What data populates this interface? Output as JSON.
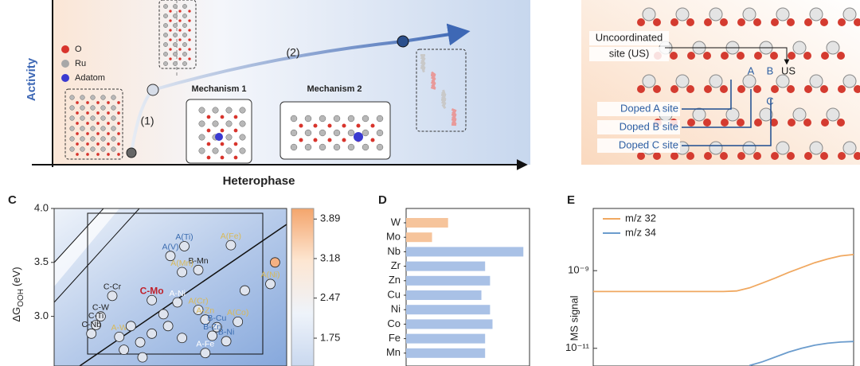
{
  "panel_a": {
    "legend": [
      "O",
      "Ru",
      "Adatom"
    ],
    "y_label": "Activity",
    "x_label": "Heterophase",
    "mechanisms": [
      "Mechanism 1",
      "Mechanism 2"
    ],
    "steps": [
      "(1)",
      "(2)"
    ]
  },
  "panel_b": {
    "uncoordinated": [
      "Uncoordinated",
      "site (US)"
    ],
    "sites": [
      "A",
      "B",
      "US",
      "C"
    ],
    "doped": [
      "Doped A site",
      "Doped B site",
      "Doped C site"
    ]
  },
  "chart_data": [
    {
      "type": "scatter",
      "panel": "C",
      "y_label": {
        "main": "ΔG",
        "sub": "OOH",
        "unit": "(eV)"
      },
      "xlim": [
        0,
        1
      ],
      "ylim": [
        2.54,
        4.0
      ],
      "yticks": [
        {
          "value": 4.0,
          "label": "4.0"
        },
        {
          "value": 3.5,
          "label": "3.5"
        },
        {
          "value": 3.0,
          "label": "3.0"
        }
      ],
      "x": [
        0.56,
        0.76,
        0.5,
        0.62,
        0.55,
        0.42,
        0.53,
        0.25,
        0.2,
        0.18,
        0.16,
        0.28,
        0.62,
        0.65,
        0.79,
        0.7,
        0.68,
        0.74,
        0.65,
        0.93,
        0.82,
        0.95,
        0.3,
        0.37,
        0.42,
        0.33,
        0.47,
        0.49,
        0.38,
        0.55
      ],
      "values": [
        3.65,
        3.66,
        3.56,
        3.43,
        3.41,
        3.15,
        3.13,
        3.19,
        3.0,
        2.92,
        2.84,
        2.81,
        3.06,
        2.97,
        2.95,
        2.9,
        2.82,
        2.77,
        2.66,
        3.3,
        3.24,
        3.5,
        2.69,
        2.76,
        2.84,
        2.91,
        3.02,
        2.91,
        2.62,
        2.8
      ],
      "point_labels": [
        "A(Ti)",
        "A(Fe)",
        "A(V)",
        "B-Mn",
        "A(Mn)",
        "C-Mo",
        "A-Ni",
        "C-Cr",
        "C-W",
        "C-Ti",
        "C-Nb",
        "A-W",
        "A(Cr)",
        "A-Zn",
        "A(Co)",
        "B-Cu",
        "B-Zn",
        "B-Ni",
        "A-Fe",
        "A(Ni)",
        null,
        null,
        null,
        null,
        null,
        null,
        null,
        null,
        null,
        null
      ],
      "label_colors": [
        "#3b6cb0",
        "#d8b95a",
        "#3b6cb0",
        "#222222",
        "#d8b95a",
        "#c0202a",
        "#ffffff",
        "#222222",
        "#222222",
        "#222222",
        "#222222",
        "#d8b95a",
        "#d8b95a",
        "#d8b95a",
        "#d8b95a",
        "#3b6cb0",
        "#3b6cb0",
        "#3b6cb0",
        "#ffffff",
        "#d8b95a",
        null,
        null,
        null,
        null,
        null,
        null,
        null,
        null,
        null,
        null
      ],
      "point_colors": [
        "#dfe4ee",
        "#dfe4ee",
        "#dfe4ee",
        "#dfe4ee",
        "#dfe4ee",
        "#dfe4ee",
        "#dfe4ee",
        "#dfe4ee",
        "#dfe4ee",
        "#dfe4ee",
        "#dfe4ee",
        "#dfe4ee",
        "#dfe4ee",
        "#dfe4ee",
        "#dfe4ee",
        "#dfe4ee",
        "#dfe4ee",
        "#dfe4ee",
        "#dfe4ee",
        "#dfe4ee",
        "#dfe4ee",
        "#f4b183",
        "#dfe4ee",
        "#dfe4ee",
        "#dfe4ee",
        "#dfe4ee",
        "#dfe4ee",
        "#dfe4ee",
        "#dfe4ee",
        "#dfe4ee"
      ],
      "colorbar": {
        "lim": [
          1.25,
          4.08
        ],
        "ticks": [
          3.89,
          3.18,
          2.47,
          1.75
        ],
        "colors": [
          "#c9d8ef",
          "#eef3fa",
          "#fde6d2",
          "#f4a56c"
        ]
      }
    },
    {
      "type": "bar",
      "panel": "D",
      "orientation": "horizontal",
      "xlim": [
        0,
        1
      ],
      "categories": [
        "W",
        "Mo",
        "Nb",
        "Zr",
        "Zn",
        "Cu",
        "Ni",
        "Co",
        "Fe",
        "Mn"
      ],
      "values": [
        0.34,
        0.21,
        0.95,
        0.64,
        0.68,
        0.61,
        0.68,
        0.7,
        0.64,
        0.64
      ],
      "colors": [
        "#f6c49b",
        "#f6c49b",
        "#a9c1e6",
        "#a9c1e6",
        "#a9c1e6",
        "#a9c1e6",
        "#a9c1e6",
        "#a9c1e6",
        "#a9c1e6",
        "#a9c1e6"
      ]
    },
    {
      "type": "line",
      "panel": "E",
      "y_label": "MS signal",
      "log_y": true,
      "xlim": [
        0,
        100
      ],
      "ylim": [
        3.5e-12,
        4e-08
      ],
      "yticks": [
        {
          "value": 1e-09,
          "label": "10⁻⁹"
        },
        {
          "value": 1e-11,
          "label": "10⁻¹¹"
        }
      ],
      "x": [
        0,
        10,
        20,
        30,
        40,
        50,
        55,
        60,
        65,
        70,
        75,
        80,
        85,
        90,
        95,
        100
      ],
      "legend": "upper left",
      "series": [
        {
          "name": "m/z 32",
          "color": "#f0a860",
          "values": [
            2.9e-10,
            2.9e-10,
            2.9e-10,
            2.9e-10,
            2.9e-10,
            2.9e-10,
            3e-10,
            3.6e-10,
            4.8e-10,
            6.5e-10,
            9e-10,
            1.2e-09,
            1.6e-09,
            2e-09,
            2.4e-09,
            2.6e-09
          ]
        },
        {
          "name": "m/z 34",
          "color": "#6b9ccd",
          "values": [
            null,
            null,
            null,
            null,
            null,
            null,
            null,
            3.6e-12,
            4.5e-12,
            6e-12,
            8e-12,
            1e-11,
            1.2e-11,
            1.35e-11,
            1.45e-11,
            1.5e-11
          ]
        }
      ]
    }
  ]
}
